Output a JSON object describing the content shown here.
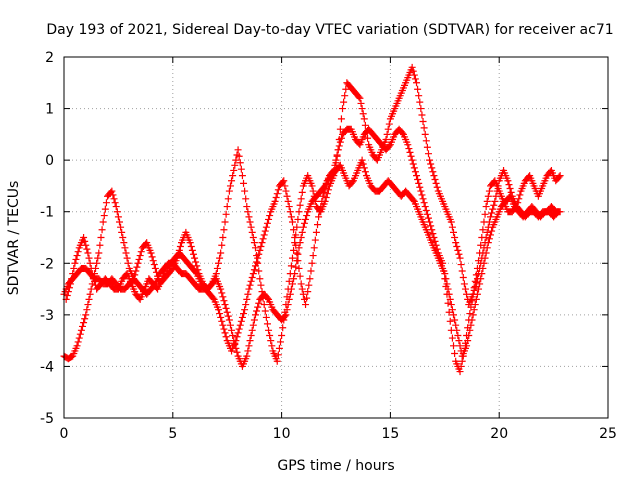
{
  "chart_data": {
    "type": "scatter",
    "title": "Day 193 of 2021, Sidereal Day-to-day VTEC variation (SDTVAR) for receiver ac71",
    "xlabel": "GPS time / hours",
    "ylabel": "SDTVAR / TECUs",
    "xlim": [
      0,
      25
    ],
    "ylim": [
      -5,
      2
    ],
    "xticks": [
      "0",
      "5",
      "10",
      "15",
      "20",
      "25"
    ],
    "yticks": [
      "-5",
      "-4",
      "-3",
      "-2",
      "-1",
      "0",
      "1",
      "2"
    ],
    "grid": true,
    "marker": "plus",
    "color": "#ff0000",
    "series": [
      {
        "x": [
          0.0,
          0.2,
          0.4,
          0.6,
          0.8,
          1.0,
          1.2,
          1.4,
          1.6,
          1.8,
          2.0,
          2.2,
          2.4,
          2.6,
          2.8,
          3.0,
          3.2,
          3.4,
          3.6,
          3.8,
          4.0,
          4.2,
          4.4,
          4.6,
          4.8,
          5.0,
          5.2,
          5.4,
          5.6,
          5.8,
          6.0,
          6.2,
          6.4,
          6.6,
          6.8,
          7.0,
          7.2,
          7.4,
          7.6,
          7.8,
          8.0,
          8.2,
          8.4,
          8.6,
          8.8,
          9.0,
          9.2,
          9.4,
          9.6,
          9.8,
          10.0,
          10.2,
          10.4,
          10.6,
          10.8,
          11.0,
          11.2,
          11.4,
          11.6,
          11.8,
          12.0,
          12.2,
          12.4,
          12.6,
          12.8,
          13.0,
          13.2,
          13.4,
          13.6,
          13.8,
          14.0,
          14.2,
          14.4,
          14.6,
          14.8,
          15.0,
          15.2,
          15.4,
          15.6,
          15.8,
          16.0,
          16.2,
          16.4,
          16.6,
          16.8,
          17.0,
          17.2,
          17.4,
          17.6,
          17.8,
          18.0,
          18.2,
          18.4,
          18.6,
          18.8,
          19.0,
          19.2,
          19.4,
          19.6,
          19.8,
          20.0,
          20.2,
          20.4,
          20.6,
          20.8,
          21.0,
          21.2,
          21.4,
          21.6,
          21.8,
          22.0,
          22.2,
          22.4,
          22.6,
          22.8
        ],
        "y": [
          -2.6,
          -2.4,
          -2.3,
          -2.2,
          -2.1,
          -2.1,
          -2.2,
          -2.3,
          -2.3,
          -2.4,
          -2.4,
          -2.3,
          -2.4,
          -2.5,
          -2.5,
          -2.4,
          -2.3,
          -2.4,
          -2.5,
          -2.6,
          -2.5,
          -2.4,
          -2.2,
          -2.1,
          -2.0,
          -2.0,
          -2.1,
          -2.2,
          -2.2,
          -2.3,
          -2.4,
          -2.5,
          -2.5,
          -2.5,
          -2.4,
          -2.3,
          -2.5,
          -2.8,
          -3.1,
          -3.5,
          -3.8,
          -4.0,
          -3.8,
          -3.4,
          -3.0,
          -2.7,
          -2.6,
          -2.7,
          -2.9,
          -3.0,
          -3.1,
          -3.0,
          -2.6,
          -2.2,
          -1.7,
          -1.3,
          -1.0,
          -0.8,
          -0.7,
          -0.6,
          -0.5,
          -0.3,
          -0.2,
          0.2,
          0.5,
          0.6,
          0.6,
          0.4,
          0.3,
          0.5,
          0.6,
          0.5,
          0.4,
          0.3,
          0.2,
          0.3,
          0.5,
          0.6,
          0.5,
          0.3,
          0.0,
          -0.3,
          -0.6,
          -0.9,
          -1.2,
          -1.5,
          -1.8,
          -2.0,
          -2.6,
          -3.3,
          -3.9,
          -4.1,
          -3.7,
          -3.1,
          -2.6,
          -2.1,
          -1.5,
          -0.9,
          -0.5,
          -0.4,
          -0.6,
          -0.8,
          -1.0,
          -1.0,
          -0.9,
          -1.0,
          -1.1,
          -1.0,
          -1.0,
          -1.1,
          -1.0,
          -1.0,
          -0.9,
          -1.0,
          -1.0
        ]
      },
      {
        "x": [
          0.0,
          0.2,
          0.4,
          0.6,
          0.8,
          1.0,
          1.2,
          1.4,
          1.6,
          1.8,
          2.0,
          2.2,
          2.4,
          2.6,
          2.8,
          3.0,
          3.2,
          3.4,
          3.6,
          3.8,
          4.0,
          4.2,
          4.4,
          4.6,
          4.8,
          5.0,
          5.2,
          5.4,
          5.6,
          5.8,
          6.0,
          6.2,
          6.4,
          6.6,
          6.8,
          7.0,
          7.2,
          7.4,
          7.6,
          7.8,
          8.0,
          8.2,
          8.4,
          8.6,
          8.8,
          9.0,
          9.2,
          9.4,
          9.6,
          9.8,
          10.0,
          10.2,
          10.4,
          10.6,
          10.8,
          11.0,
          11.2,
          11.4,
          11.6,
          11.8,
          12.0,
          12.2,
          12.4,
          12.6,
          12.8,
          13.0,
          13.2,
          13.4,
          13.6,
          13.8,
          14.0,
          14.2,
          14.4,
          14.6,
          14.8,
          15.0,
          15.2,
          15.4,
          15.6,
          15.8,
          16.0,
          16.2,
          16.4,
          16.6,
          16.8,
          17.0,
          17.2,
          17.4,
          17.6,
          17.8,
          18.0,
          18.2,
          18.4,
          18.6,
          18.8,
          19.0,
          19.2,
          19.4,
          19.6,
          19.8,
          20.0,
          20.2,
          20.4,
          20.6,
          20.8,
          21.0,
          21.2,
          21.4,
          21.6,
          21.8,
          22.0,
          22.2,
          22.4,
          22.6,
          22.8
        ],
        "y": [
          -3.8,
          -3.85,
          -3.8,
          -3.6,
          -3.3,
          -3.0,
          -2.6,
          -2.2,
          -1.8,
          -1.2,
          -0.7,
          -0.6,
          -0.9,
          -1.3,
          -1.7,
          -2.1,
          -2.3,
          -2.0,
          -1.7,
          -1.6,
          -1.8,
          -2.1,
          -2.4,
          -2.3,
          -2.2,
          -2.1,
          -1.9,
          -1.6,
          -1.4,
          -1.6,
          -1.9,
          -2.2,
          -2.4,
          -2.5,
          -2.4,
          -2.2,
          -1.8,
          -1.2,
          -0.6,
          -0.2,
          0.2,
          -0.3,
          -0.9,
          -1.3,
          -1.7,
          -2.3,
          -2.8,
          -3.3,
          -3.7,
          -3.9,
          -3.4,
          -2.8,
          -2.2,
          -1.6,
          -1.0,
          -0.5,
          -0.3,
          -0.5,
          -0.9,
          -1.0,
          -0.8,
          -0.5,
          -0.3,
          0.2,
          1.0,
          1.5,
          1.4,
          1.3,
          1.2,
          0.8,
          0.3,
          0.1,
          0.0,
          0.2,
          0.4,
          0.8,
          1.0,
          1.2,
          1.4,
          1.6,
          1.8,
          1.5,
          1.0,
          0.5,
          0.0,
          -0.3,
          -0.6,
          -0.8,
          -1.0,
          -1.2,
          -1.6,
          -1.9,
          -2.4,
          -2.8,
          -2.6,
          -2.3,
          -1.9,
          -1.5,
          -1.1,
          -0.8,
          -0.4,
          -0.2,
          -0.4,
          -0.7,
          -0.9,
          -0.6,
          -0.4,
          -0.3,
          -0.5,
          -0.7,
          -0.5,
          -0.3,
          -0.2,
          -0.4,
          -0.3
        ]
      },
      {
        "x": [
          0.1,
          0.3,
          0.5,
          0.7,
          0.9,
          1.1,
          1.3,
          1.5,
          1.7,
          1.9,
          2.1,
          2.3,
          2.5,
          2.7,
          2.9,
          3.1,
          3.3,
          3.5,
          3.7,
          3.9,
          4.1,
          4.3,
          4.5,
          4.7,
          4.9,
          5.1,
          5.3,
          5.5,
          5.7,
          5.9,
          6.1,
          6.3,
          6.5,
          6.7,
          6.9,
          7.1,
          7.3,
          7.5,
          7.7,
          7.9,
          8.1,
          8.3,
          8.5,
          8.7,
          8.9,
          9.1,
          9.3,
          9.5,
          9.7,
          9.9,
          10.1,
          10.3,
          10.5,
          10.7,
          10.9,
          11.1,
          11.3,
          11.5,
          11.7,
          11.9,
          12.1,
          12.3,
          12.5,
          12.7,
          12.9,
          13.1,
          13.3,
          13.5,
          13.7,
          13.9,
          14.1,
          14.3,
          14.5,
          14.7,
          14.9,
          15.1,
          15.3,
          15.5,
          15.7,
          15.9,
          16.1,
          16.3,
          16.5,
          16.7,
          16.9,
          17.1,
          17.3,
          17.5,
          17.7,
          17.9,
          18.1,
          18.3,
          18.5,
          18.7,
          18.9,
          19.1,
          19.3,
          19.5,
          19.7,
          19.9,
          20.1,
          20.3,
          20.5,
          20.7,
          20.9,
          21.1,
          21.3,
          21.5,
          21.7,
          21.9,
          22.1,
          22.3,
          22.5,
          22.7
        ],
        "y": [
          -2.7,
          -2.4,
          -2.0,
          -1.7,
          -1.5,
          -1.8,
          -2.2,
          -2.5,
          -2.4,
          -2.3,
          -2.4,
          -2.5,
          -2.5,
          -2.3,
          -2.2,
          -2.4,
          -2.6,
          -2.7,
          -2.5,
          -2.3,
          -2.4,
          -2.5,
          -2.3,
          -2.1,
          -2.0,
          -1.9,
          -1.8,
          -1.9,
          -2.0,
          -2.1,
          -2.2,
          -2.4,
          -2.5,
          -2.6,
          -2.7,
          -2.9,
          -3.2,
          -3.5,
          -3.7,
          -3.5,
          -3.2,
          -2.9,
          -2.5,
          -2.2,
          -1.9,
          -1.6,
          -1.3,
          -1.0,
          -0.8,
          -0.5,
          -0.4,
          -0.8,
          -1.2,
          -1.8,
          -2.4,
          -2.8,
          -2.3,
          -1.7,
          -1.1,
          -0.7,
          -0.4,
          -0.3,
          -0.2,
          -0.1,
          -0.3,
          -0.5,
          -0.4,
          -0.2,
          0.0,
          -0.3,
          -0.5,
          -0.6,
          -0.6,
          -0.5,
          -0.4,
          -0.5,
          -0.6,
          -0.7,
          -0.6,
          -0.7,
          -0.8,
          -1.0,
          -1.2,
          -1.4,
          -1.6,
          -1.8,
          -2.0,
          -2.2,
          -2.6,
          -3.0,
          -3.4,
          -3.8,
          -3.6,
          -3.2,
          -2.8,
          -2.4,
          -2.0,
          -1.6,
          -1.3,
          -1.1,
          -0.9,
          -0.8,
          -0.7,
          -0.9,
          -1.0,
          -1.1,
          -1.0,
          -0.9,
          -1.0,
          -1.1,
          -1.0,
          -1.0,
          -1.1,
          -1.0
        ]
      }
    ]
  }
}
